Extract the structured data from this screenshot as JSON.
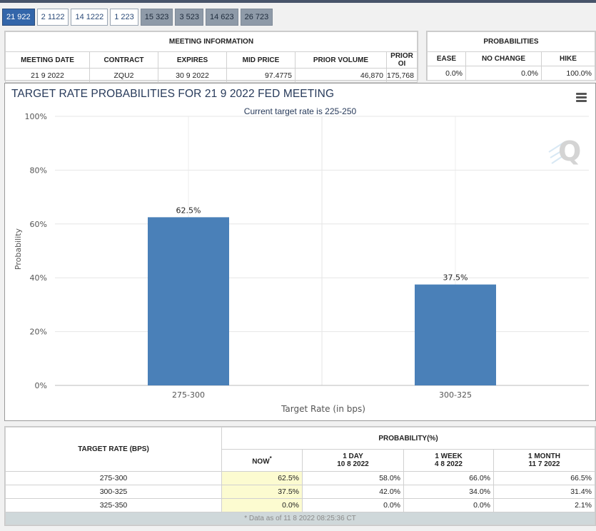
{
  "tabs": [
    "21 922",
    "2 1122",
    "14 1222",
    "1 223",
    "15 323",
    "3 523",
    "14 623",
    "26 723"
  ],
  "meeting_info": {
    "title": "MEETING INFORMATION",
    "headers": [
      "MEETING DATE",
      "CONTRACT",
      "EXPIRES",
      "MID PRICE",
      "PRIOR VOLUME",
      "PRIOR OI"
    ],
    "values": [
      "21 9 2022",
      "ZQU2",
      "30 9 2022",
      "97.4775",
      "46,870",
      "175,768"
    ]
  },
  "probabilities": {
    "title": "PROBABILITIES",
    "headers": [
      "EASE",
      "NO CHANGE",
      "HIKE"
    ],
    "values": [
      "0.0%",
      "0.0%",
      "100.0%"
    ]
  },
  "chart": {
    "title": "TARGET RATE PROBABILITIES FOR 21 9 2022 FED MEETING",
    "subtitle": "Current target rate is 225-250",
    "watermark": "Q"
  },
  "chart_data": {
    "type": "bar",
    "title": "TARGET RATE PROBABILITIES FOR 21 9 2022 FED MEETING",
    "subtitle": "Current target rate is 225-250",
    "categories": [
      "275-300",
      "300-325"
    ],
    "values": [
      62.5,
      37.5
    ],
    "data_labels": [
      "62.5%",
      "37.5%"
    ],
    "xlabel": "Target Rate (in bps)",
    "ylabel": "Probability",
    "ylim": [
      0,
      100
    ],
    "yticks": [
      "0%",
      "20%",
      "40%",
      "60%",
      "80%",
      "100%"
    ],
    "ytick_values": [
      0,
      20,
      40,
      60,
      80,
      100
    ],
    "color": "#4a80b8",
    "grid": true
  },
  "bottom": {
    "rate_header": "TARGET RATE (BPS)",
    "prob_header": "PROBABILITY(%)",
    "now": "NOW",
    "now_mark": "*",
    "cols": [
      {
        "l1": "1 DAY",
        "l2": "10 8 2022"
      },
      {
        "l1": "1 WEEK",
        "l2": "4 8 2022"
      },
      {
        "l1": "1 MONTH",
        "l2": "11 7 2022"
      }
    ],
    "rows": [
      {
        "rate": "275-300",
        "now": "62.5%",
        "d": "58.0%",
        "w": "66.0%",
        "m": "66.5%"
      },
      {
        "rate": "300-325",
        "now": "37.5%",
        "d": "42.0%",
        "w": "34.0%",
        "m": "31.4%"
      },
      {
        "rate": "325-350",
        "now": "0.0%",
        "d": "0.0%",
        "w": "0.0%",
        "m": "2.1%"
      }
    ],
    "footnote": "* Data as of 11 8 2022 08:25:36 CT"
  }
}
